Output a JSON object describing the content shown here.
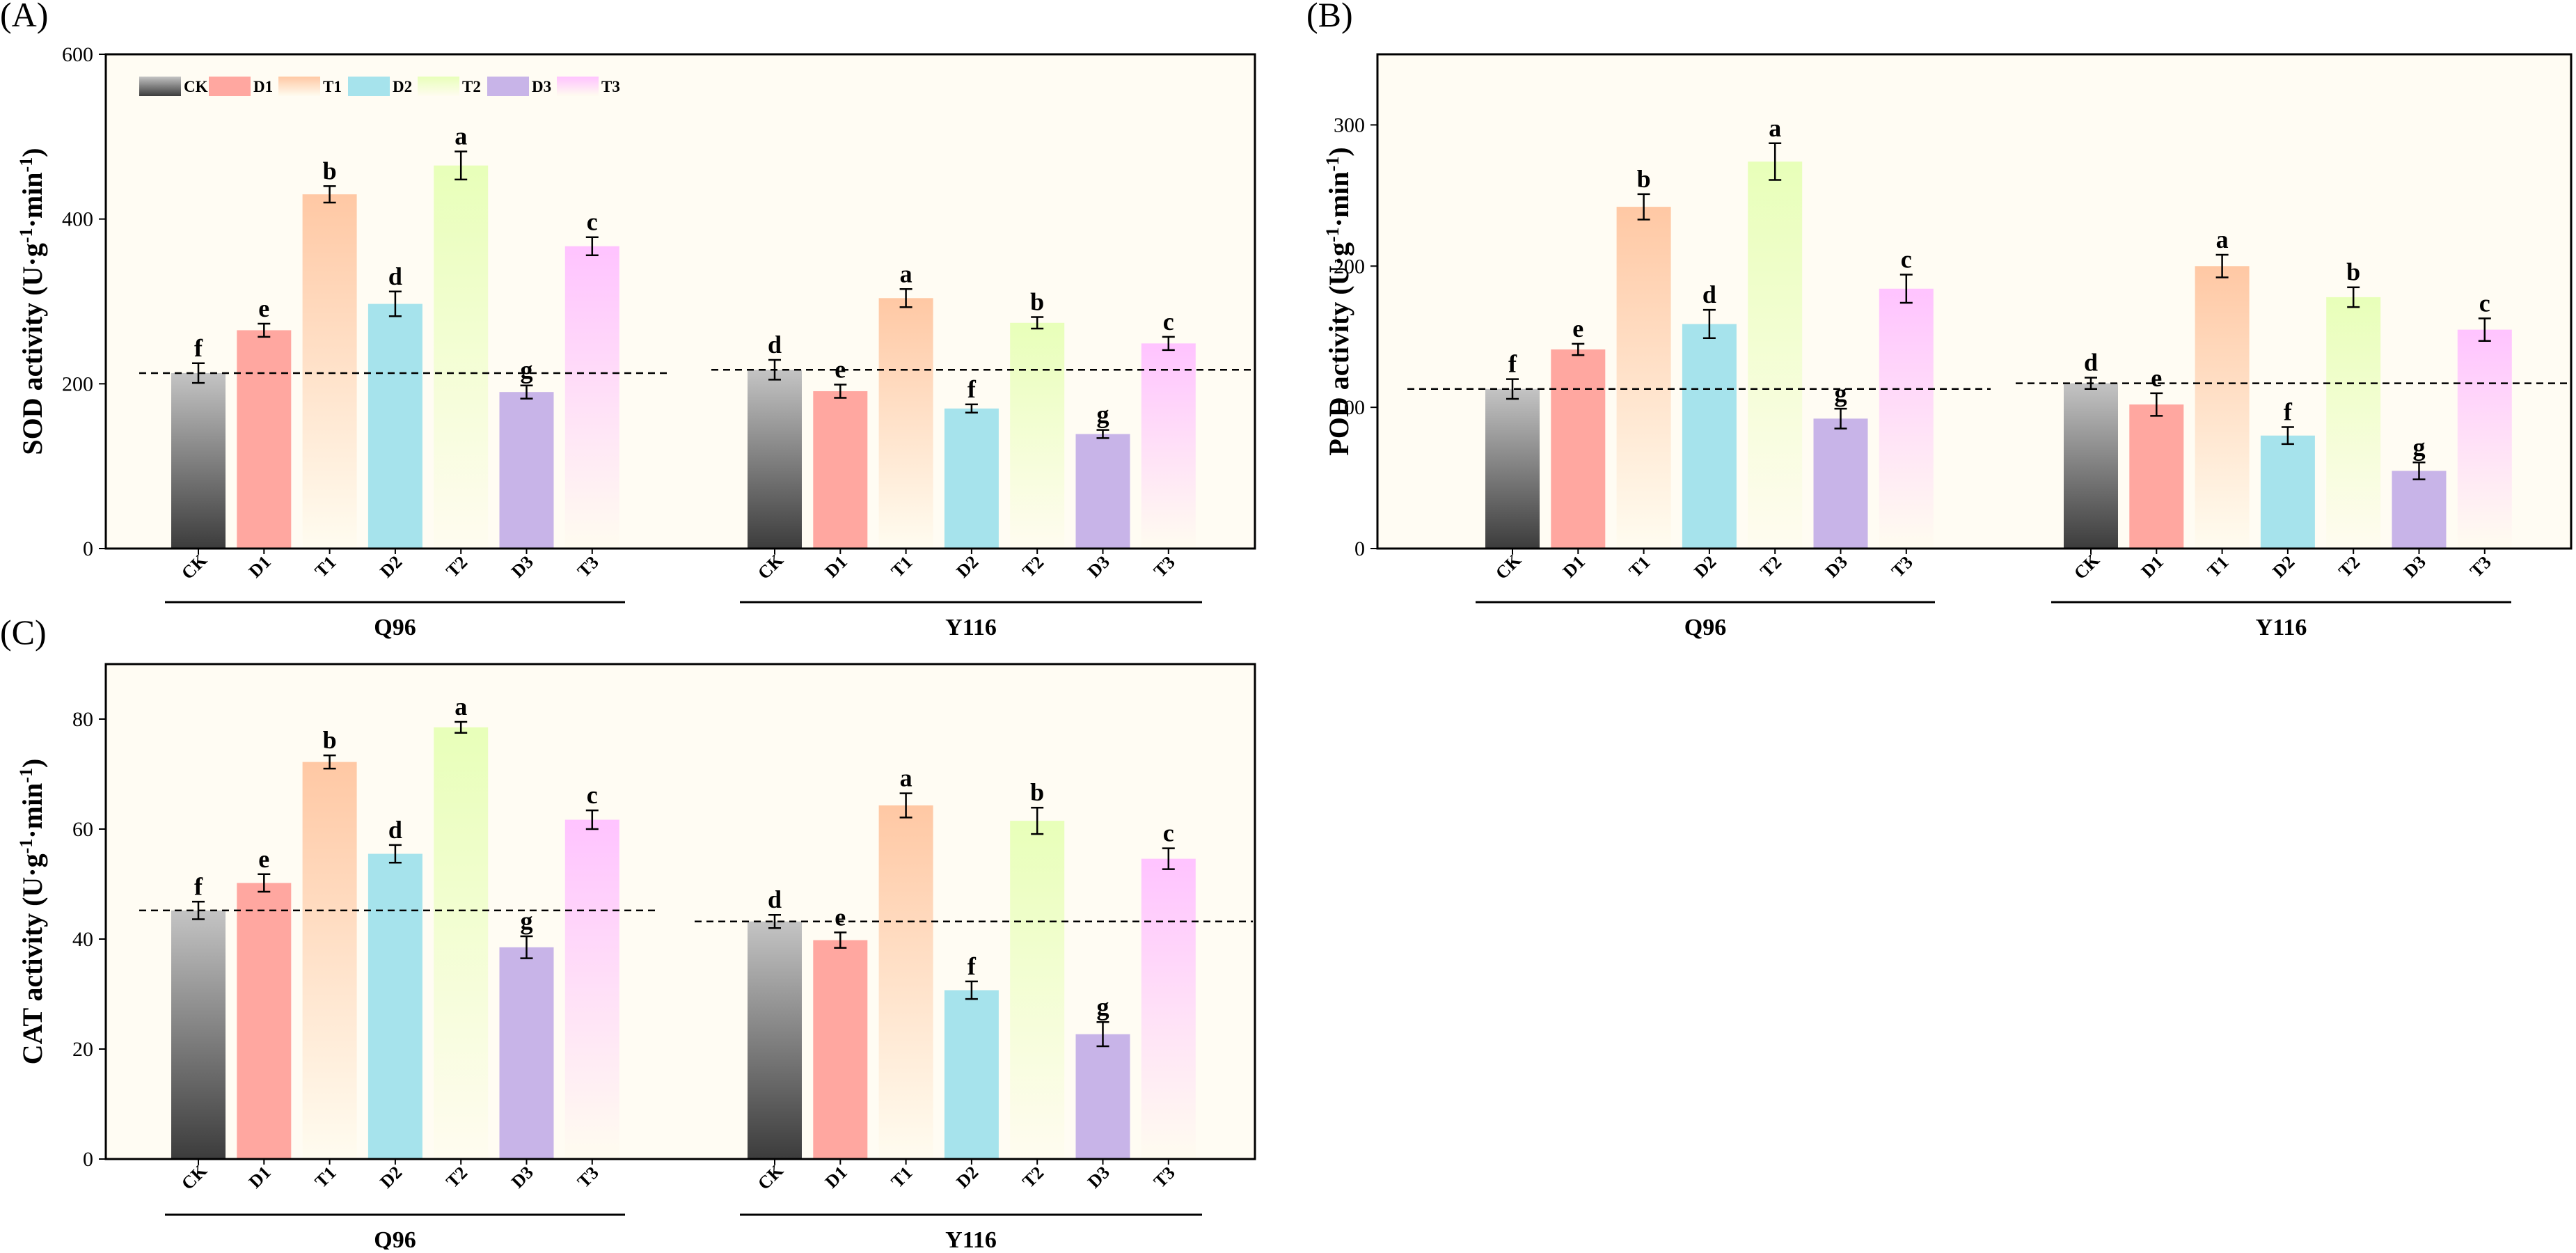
{
  "colors": {
    "plot_bg": "#fffcf3",
    "CK": {
      "top": "#c4c4c4",
      "bottom": "#3c3c3c"
    },
    "D1": {
      "top": "#ffa7a0",
      "bottom": "#ffa7a0"
    },
    "T1": {
      "top": "#ffc8a4",
      "bottom": "#fffcf0"
    },
    "D2": {
      "top": "#a6e3ec",
      "bottom": "#a6e3ec"
    },
    "T2": {
      "top": "#e8ffb9",
      "bottom": "#fffcf0"
    },
    "D3": {
      "top": "#c8b4e8",
      "bottom": "#c8b4e8"
    },
    "T3": {
      "top": "#ffc3ff",
      "bottom": "#fffcf0"
    }
  },
  "legend": [
    "CK",
    "D1",
    "T1",
    "D2",
    "T2",
    "D3",
    "T3"
  ],
  "chart_data": [
    {
      "id": "A",
      "panel_label": "(A)",
      "type": "bar",
      "ylabel_main": "SOD activity (U·g",
      "ylabel_sup1": "-1",
      "ylabel_mid": "·min",
      "ylabel_sup2": "-1",
      "ylabel_end": ")",
      "ylim": [
        0,
        600
      ],
      "yticks": [
        "0",
        "200",
        "400",
        "600"
      ],
      "ytick_values": [
        0,
        200,
        400,
        600
      ],
      "categories": [
        "CK",
        "D1",
        "T1",
        "D2",
        "T2",
        "D3",
        "T3"
      ],
      "groups": [
        {
          "name": "Q96",
          "values": [
            213,
            265,
            430,
            297,
            465,
            190,
            367
          ],
          "errors": [
            12,
            8,
            10,
            15,
            17,
            8,
            11
          ],
          "letters": [
            "f",
            "e",
            "b",
            "d",
            "a",
            "g",
            "c"
          ],
          "baseline": 213
        },
        {
          "name": "Y116",
          "values": [
            217,
            191,
            304,
            170,
            274,
            139,
            249
          ],
          "errors": [
            12,
            8,
            11,
            5,
            7,
            5,
            8
          ],
          "letters": [
            "d",
            "e",
            "a",
            "f",
            "b",
            "g",
            "c"
          ],
          "baseline": 217
        }
      ],
      "show_legend": true
    },
    {
      "id": "B",
      "panel_label": "(B)",
      "type": "bar",
      "ylabel_main": "POD activity (U·g",
      "ylabel_sup1": "-1",
      "ylabel_mid": "·min",
      "ylabel_sup2": "-1",
      "ylabel_end": ")",
      "ylim": [
        0,
        350
      ],
      "yticks": [
        "0",
        "100",
        "200",
        "300"
      ],
      "ytick_values": [
        0,
        100,
        200,
        300
      ],
      "categories": [
        "CK",
        "D1",
        "T1",
        "D2",
        "T2",
        "D3",
        "T3"
      ],
      "groups": [
        {
          "name": "Q96",
          "values": [
            113,
            141,
            242,
            159,
            274,
            92,
            184
          ],
          "errors": [
            7,
            4,
            9,
            10,
            13,
            7,
            10
          ],
          "letters": [
            "f",
            "e",
            "b",
            "d",
            "a",
            "g",
            "c"
          ],
          "baseline": 113
        },
        {
          "name": "Y116",
          "values": [
            117,
            102,
            200,
            80,
            178,
            55,
            155
          ],
          "errors": [
            4,
            8,
            8,
            6,
            7,
            6,
            8
          ],
          "letters": [
            "d",
            "e",
            "a",
            "f",
            "b",
            "g",
            "c"
          ],
          "baseline": 117
        }
      ],
      "show_legend": false
    },
    {
      "id": "C",
      "panel_label": "(C)",
      "type": "bar",
      "ylabel_main": "CAT activity (U·g",
      "ylabel_sup1": "-1",
      "ylabel_mid": "·min",
      "ylabel_sup2": "-1",
      "ylabel_end": ")",
      "ylim": [
        0,
        90
      ],
      "yticks": [
        "0",
        "20",
        "40",
        "60",
        "80"
      ],
      "ytick_values": [
        0,
        20,
        40,
        60,
        80
      ],
      "categories": [
        "CK",
        "D1",
        "T1",
        "D2",
        "T2",
        "D3",
        "T3"
      ],
      "groups": [
        {
          "name": "Q96",
          "values": [
            45.2,
            50.2,
            72.2,
            55.5,
            78.5,
            38.5,
            61.7
          ],
          "errors": [
            1.6,
            1.6,
            1.2,
            1.6,
            1.0,
            2.0,
            1.7
          ],
          "letters": [
            "f",
            "e",
            "b",
            "d",
            "a",
            "g",
            "c"
          ],
          "baseline": 45.2
        },
        {
          "name": "Y116",
          "values": [
            43.2,
            39.8,
            64.3,
            30.7,
            61.5,
            22.7,
            54.6
          ],
          "errors": [
            1.2,
            1.4,
            2.2,
            1.6,
            2.4,
            2.2,
            1.9
          ],
          "letters": [
            "d",
            "e",
            "a",
            "f",
            "b",
            "g",
            "c"
          ],
          "baseline": 43.2
        }
      ],
      "show_legend": false
    }
  ]
}
